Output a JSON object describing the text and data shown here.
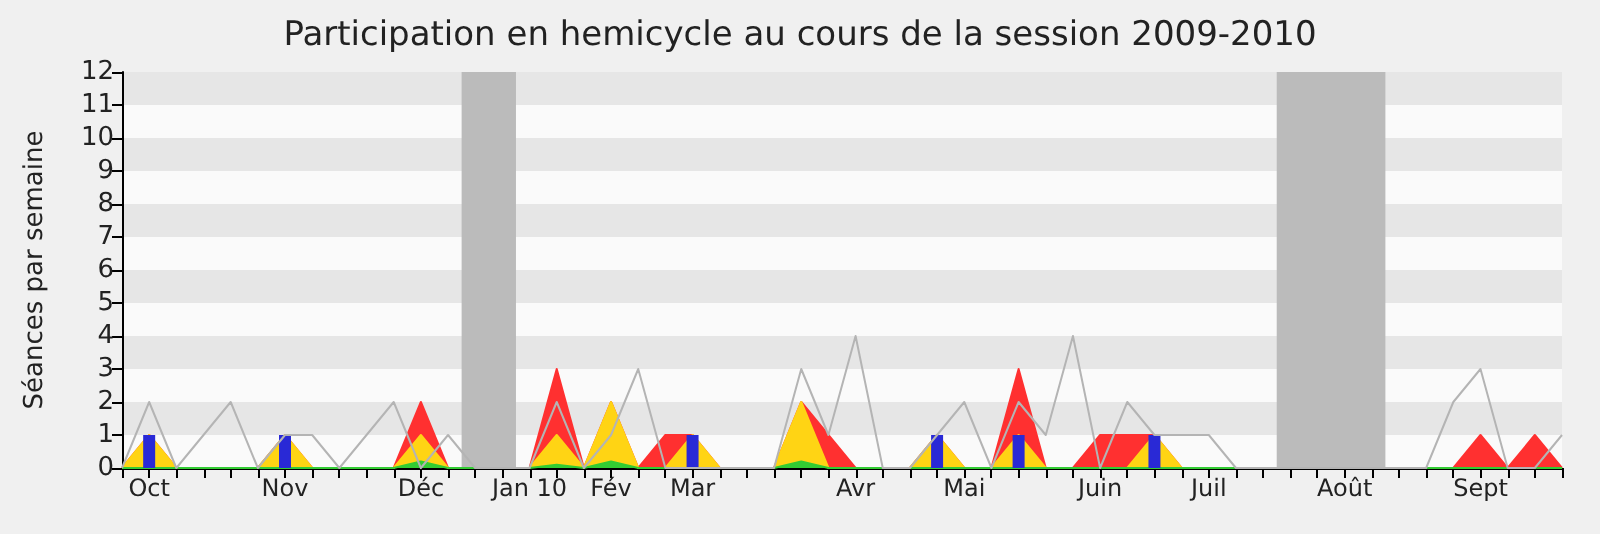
{
  "chart_data": {
    "type": "area",
    "title": "Participation en hemicycle au cours de la session 2009-2010",
    "ylabel": "Séances par semaine",
    "categories": [
      null,
      "Oct",
      null,
      null,
      null,
      null,
      "Nov",
      null,
      null,
      null,
      null,
      "Déc",
      null,
      null,
      null,
      "Jan 10",
      null,
      null,
      "Fév",
      null,
      null,
      "Mar",
      null,
      null,
      null,
      null,
      null,
      "Avr",
      null,
      null,
      null,
      "Mai",
      null,
      null,
      null,
      null,
      "Juin",
      null,
      null,
      null,
      "Juil",
      null,
      null,
      null,
      null,
      "Août",
      null,
      null,
      null,
      null,
      "Sept",
      null,
      null,
      null
    ],
    "series": [
      {
        "color": "#ff3030",
        "values": [
          0,
          1,
          0,
          0,
          0,
          0,
          1,
          0,
          0,
          0,
          0,
          2,
          0,
          0,
          0,
          0,
          3,
          0,
          2,
          0,
          1,
          1,
          0,
          0,
          0,
          2,
          1,
          0,
          0,
          0,
          1,
          0,
          0,
          3,
          0,
          0,
          1,
          1,
          1,
          0,
          0,
          0,
          0,
          0,
          0,
          0,
          0,
          0,
          0,
          0,
          1,
          0,
          1,
          0
        ]
      },
      {
        "color": "#ffd414",
        "values": [
          0,
          1,
          0,
          0,
          0,
          0,
          1,
          0,
          0,
          0,
          0,
          1,
          0,
          0,
          0,
          0,
          1,
          0,
          2,
          0,
          0,
          1,
          0,
          0,
          0,
          2,
          0,
          0,
          0,
          0,
          1,
          0,
          0,
          1,
          0,
          0,
          0,
          0,
          1,
          0,
          0,
          0,
          0,
          0,
          0,
          0,
          0,
          0,
          0,
          0,
          0,
          0,
          0,
          0
        ]
      },
      {
        "color": "#33cc33",
        "values": [
          0,
          0,
          0,
          0,
          0,
          0,
          0,
          0,
          0,
          0,
          0,
          0.2,
          0,
          0,
          0,
          0,
          0.1,
          0,
          0.2,
          0,
          0,
          0,
          0,
          0,
          0,
          0.2,
          0,
          0,
          0,
          0,
          0,
          0,
          0,
          0,
          0,
          0,
          0,
          0,
          0,
          0,
          0,
          0,
          0,
          0,
          0,
          0,
          0,
          0,
          0,
          0,
          0,
          0,
          0,
          0
        ]
      },
      {
        "type": "bar",
        "color": "#2929d6",
        "values": [
          0,
          1,
          0,
          0,
          0,
          0,
          1,
          0,
          0,
          0,
          0,
          0,
          0,
          0,
          0,
          0,
          0,
          0,
          0,
          0,
          0,
          1,
          0,
          0,
          0,
          0,
          0,
          0,
          0,
          0,
          1,
          0,
          0,
          1,
          0,
          0,
          0,
          0,
          1,
          0,
          0,
          0,
          0,
          0,
          0,
          0,
          0,
          0,
          0,
          0,
          0,
          0,
          0,
          0
        ]
      },
      {
        "type": "line",
        "color": "#b4b4b4",
        "values": [
          0,
          2,
          0,
          1,
          2,
          0,
          1,
          1,
          0,
          1,
          2,
          0,
          1,
          0,
          0,
          0,
          2,
          0,
          1,
          3,
          0,
          0,
          0,
          0,
          0,
          3,
          1,
          4,
          0,
          0,
          1,
          2,
          0,
          2,
          1,
          4,
          0,
          2,
          1,
          1,
          1,
          0,
          0,
          0,
          0,
          0,
          0,
          0,
          0,
          2,
          3,
          0,
          0,
          1
        ]
      }
    ],
    "ylim": [
      0,
      12
    ],
    "yticks": [
      0,
      1,
      2,
      3,
      4,
      5,
      6,
      7,
      8,
      9,
      10,
      11,
      12
    ],
    "marker": "none"
  }
}
